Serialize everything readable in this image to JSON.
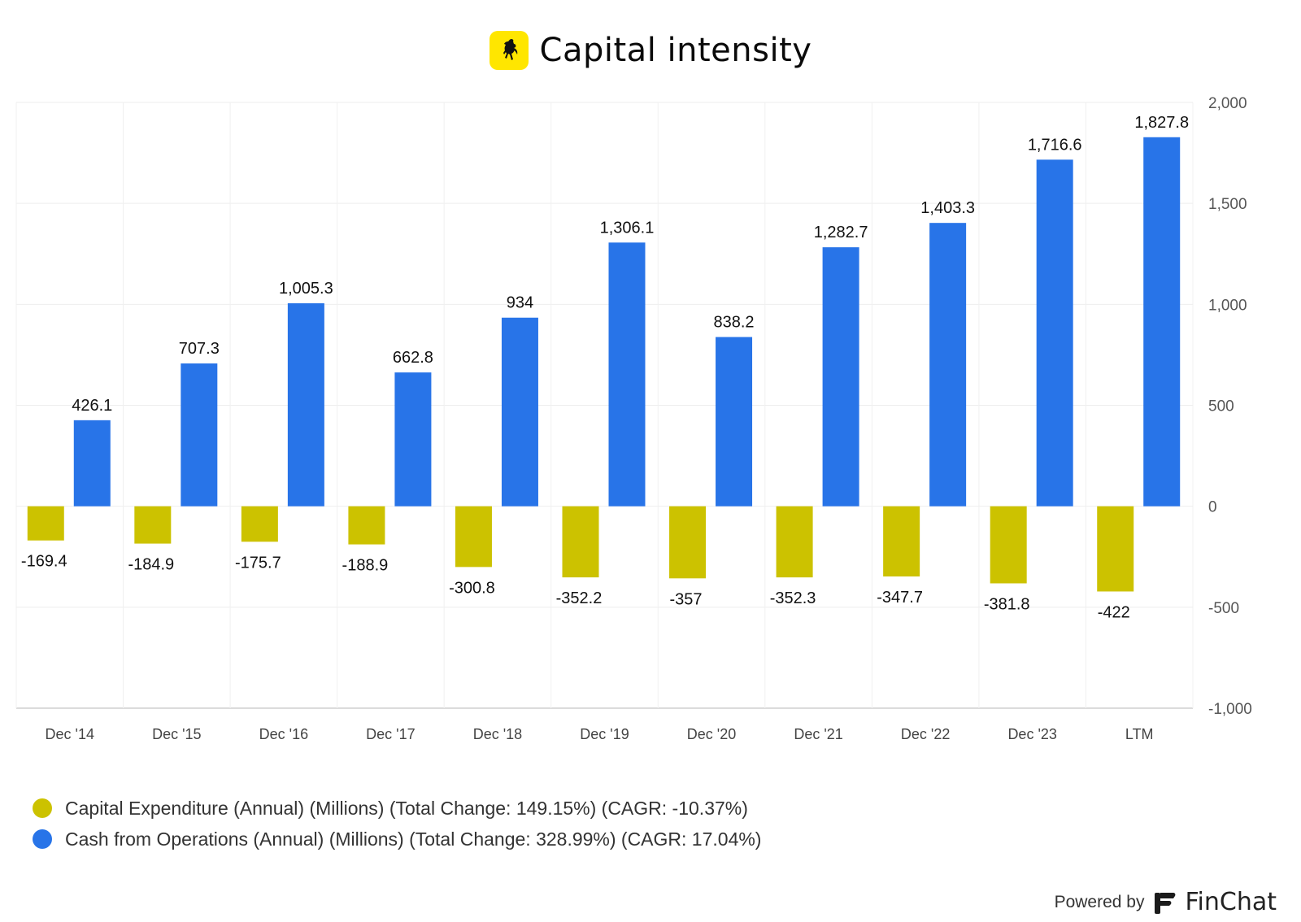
{
  "header": {
    "title": "Capital intensity",
    "logo_icon": "prancing-horse-icon",
    "logo_color": "#FFE600"
  },
  "chart_data": {
    "type": "bar",
    "title": "Capital intensity",
    "categories": [
      "Dec '14",
      "Dec '15",
      "Dec '16",
      "Dec '17",
      "Dec '18",
      "Dec '19",
      "Dec '20",
      "Dec '21",
      "Dec '22",
      "Dec '23",
      "LTM"
    ],
    "series": [
      {
        "name": "Capital Expenditure (Annual) (Millions) (Total Change: 149.15%) (CAGR: -10.37%)",
        "color": "#CCC200",
        "values": [
          -169.4,
          -184.9,
          -175.7,
          -188.9,
          -300.8,
          -352.2,
          -357,
          -352.3,
          -347.7,
          -381.8,
          -422
        ],
        "labels": [
          "-169.4",
          "-184.9",
          "-175.7",
          "-188.9",
          "-300.8",
          "-352.2",
          "-357",
          "-352.3",
          "-347.7",
          "-381.8",
          "-422"
        ]
      },
      {
        "name": "Cash from Operations (Annual) (Millions) (Total Change: 328.99%) (CAGR: 17.04%)",
        "color": "#2874E8",
        "values": [
          426.1,
          707.3,
          1005.3,
          662.8,
          934,
          1306.1,
          838.2,
          1282.7,
          1403.3,
          1716.6,
          1827.8
        ],
        "labels": [
          "426.1",
          "707.3",
          "1,005.3",
          "662.8",
          "934",
          "1,306.1",
          "838.2",
          "1,282.7",
          "1,403.3",
          "1,716.6",
          "1,827.8"
        ]
      }
    ],
    "ylim": [
      -1000,
      2000
    ],
    "yticks": [
      2000,
      1500,
      1000,
      500,
      0,
      -500,
      -1000
    ],
    "ytick_labels": [
      "2,000",
      "1,500",
      "1,000",
      "500",
      "0",
      "-500",
      "-1,000"
    ],
    "y_axis_side": "right",
    "grid": true,
    "legend_position": "bottom-left"
  },
  "footer": {
    "powered_by": "Powered by",
    "brand": "FinChat",
    "brand_icon": "finchat-logo-icon"
  }
}
